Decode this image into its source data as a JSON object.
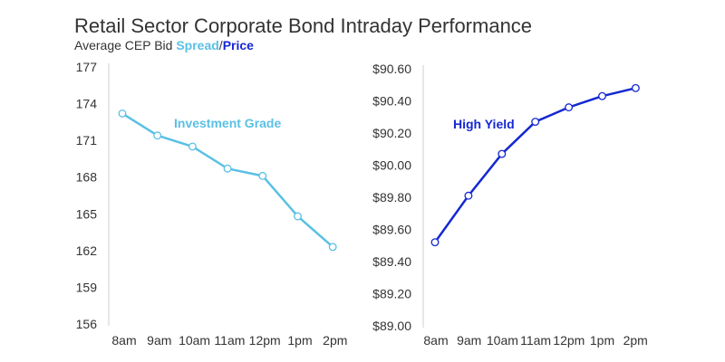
{
  "title": "Retail Sector Corporate Bond Intraday Performance",
  "subtitle": {
    "prefix": "Average CEP Bid ",
    "word1": "Spread",
    "separator": "/",
    "word2": "Price"
  },
  "colors": {
    "investment_grade": "#5ac0e4",
    "high_yield": "#1428d2",
    "text": "#333333",
    "grid": "#d9d9d9"
  },
  "chart_data": [
    {
      "type": "line",
      "categories": [
        "8am",
        "9am",
        "10am",
        "11am",
        "12pm",
        "1pm",
        "2pm"
      ],
      "series": [
        {
          "name": "Investment Grade",
          "values": [
            173.2,
            171.4,
            170.5,
            168.7,
            168.1,
            164.8,
            162.3
          ]
        }
      ],
      "yticks": [
        "177",
        "174",
        "171",
        "168",
        "165",
        "162",
        "159",
        "156"
      ],
      "ylim": [
        156,
        177
      ],
      "grid": false,
      "legend": "inline label"
    },
    {
      "type": "line",
      "categories": [
        "8am",
        "9am",
        "10am",
        "11am",
        "12pm",
        "1pm",
        "2pm"
      ],
      "series": [
        {
          "name": "High Yield",
          "values": [
            89.52,
            89.81,
            90.07,
            90.27,
            90.36,
            90.43,
            90.48
          ]
        }
      ],
      "yticks": [
        "$90.60",
        "$90.40",
        "$90.20",
        "$90.00",
        "$89.80",
        "$89.60",
        "$89.40",
        "$89.20",
        "$89.00"
      ],
      "ylim": [
        89.0,
        90.6
      ],
      "grid": false,
      "legend": "inline label"
    }
  ]
}
